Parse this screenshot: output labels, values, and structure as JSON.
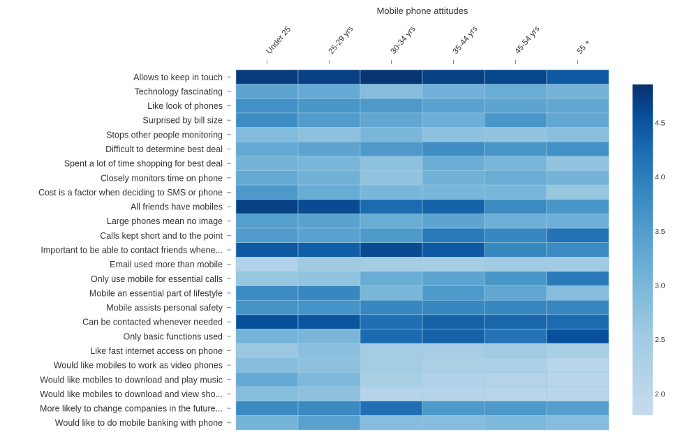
{
  "chart_data": {
    "type": "heatmap",
    "title": "Mobile phone attitudes",
    "xlabel": "",
    "ylabel": "",
    "columns": [
      "Under 25",
      "25-29 yrs",
      "30-34 yrs",
      "35-44 yrs",
      "45-54 yrs",
      "55 +"
    ],
    "rows": [
      "Allows to keep in touch",
      "Technology fascinating",
      "Like look of phones",
      "Surprised by bill size",
      "Stops other people monitoring",
      "Difficult to determine best deal",
      "Spent a lot of time shopping for best deal",
      "Closely monitors time on phone",
      "Cost is a factor when deciding to SMS or phone",
      "All friends have mobiles",
      "Large phones mean no image",
      "Calls kept short and to the point",
      "Important to be able to contact friends whene...",
      "Email used more than mobile",
      "Only use mobile for essential calls",
      "Mobile an essential part of lifestyle",
      "Mobile assists personal safety",
      "Can be contacted whenever needed",
      "Only basic functions used",
      "Like fast internet access on phone",
      "Would like mobiles to work as video phones",
      "Would like mobiles to download and play music",
      "Would like mobiles to download and view sho...",
      "More likely to change companies in the future...",
      "Would like to do mobile banking with phone"
    ],
    "values": [
      [
        4.75,
        4.7,
        4.8,
        4.7,
        4.65,
        4.45
      ],
      [
        3.35,
        3.25,
        2.85,
        3.1,
        3.2,
        3.05
      ],
      [
        3.7,
        3.6,
        3.55,
        3.4,
        3.35,
        3.3
      ],
      [
        3.75,
        3.5,
        3.3,
        3.15,
        3.6,
        3.3
      ],
      [
        2.9,
        2.75,
        3.0,
        2.75,
        2.7,
        2.8
      ],
      [
        3.25,
        3.35,
        3.55,
        3.75,
        3.6,
        3.7
      ],
      [
        3.05,
        3.0,
        2.75,
        3.2,
        3.0,
        2.7
      ],
      [
        3.25,
        3.1,
        2.7,
        3.1,
        3.2,
        3.05
      ],
      [
        3.55,
        3.2,
        3.0,
        3.0,
        3.0,
        2.65
      ],
      [
        4.7,
        4.6,
        4.25,
        4.35,
        3.8,
        3.6
      ],
      [
        3.45,
        3.4,
        3.2,
        3.35,
        3.15,
        3.15
      ],
      [
        3.5,
        3.4,
        3.55,
        4.05,
        3.85,
        4.15
      ],
      [
        4.45,
        4.4,
        4.6,
        4.45,
        3.85,
        3.8
      ],
      [
        2.2,
        2.55,
        2.45,
        2.4,
        2.5,
        2.5
      ],
      [
        2.65,
        2.7,
        3.2,
        3.35,
        3.6,
        4.05
      ],
      [
        3.8,
        3.85,
        3.0,
        3.55,
        3.3,
        2.85
      ],
      [
        3.65,
        3.65,
        3.85,
        3.85,
        3.85,
        3.85
      ],
      [
        4.55,
        4.5,
        4.2,
        4.35,
        4.3,
        4.25
      ],
      [
        3.05,
        3.0,
        4.25,
        4.35,
        4.15,
        4.55
      ],
      [
        2.6,
        2.8,
        2.45,
        2.4,
        2.5,
        2.35
      ],
      [
        2.85,
        2.75,
        2.45,
        2.3,
        2.3,
        2.05
      ],
      [
        3.25,
        2.95,
        2.35,
        2.2,
        2.15,
        2.05
      ],
      [
        2.85,
        2.75,
        2.1,
        2.1,
        2.05,
        2.05
      ],
      [
        3.8,
        3.8,
        4.2,
        3.55,
        3.55,
        3.45
      ],
      [
        3.05,
        3.4,
        2.85,
        2.85,
        2.95,
        2.85
      ]
    ],
    "colorbar": {
      "range": [
        1.8,
        4.85
      ],
      "ticks": [
        2.0,
        2.5,
        3.0,
        3.5,
        4.0,
        4.5
      ],
      "tick_labels": [
        "2.0",
        "2.5",
        "3.0",
        "3.5",
        "4.0",
        "4.5"
      ],
      "scheme": "Blues",
      "placement": "right"
    },
    "grid": false,
    "legend": "colorbar-right"
  }
}
